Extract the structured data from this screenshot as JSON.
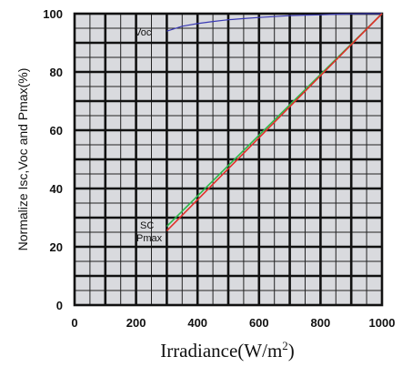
{
  "chart_data": {
    "type": "line",
    "xlabel": "Irradiance(W/m",
    "xlabel_sup": "2",
    "xlabel_close": ")",
    "ylabel": "Normalize Isc,Voc and Pmax(%)",
    "xlim": [
      0,
      1000
    ],
    "ylim": [
      0,
      100
    ],
    "x_ticks": [
      "0",
      "200",
      "400",
      "600",
      "800",
      "1000"
    ],
    "y_ticks": [
      "0",
      "20",
      "40",
      "60",
      "80",
      "100"
    ],
    "grid": true,
    "series": [
      {
        "name": "Voc",
        "color": "#3a3ab4",
        "x": [
          300,
          350,
          400,
          450,
          500,
          550,
          600,
          650,
          700,
          750,
          800,
          850,
          900,
          950,
          1000
        ],
        "y": [
          94,
          95.7,
          96.6,
          97.3,
          97.9,
          98.3,
          98.7,
          99.0,
          99.3,
          99.5,
          99.6,
          99.8,
          99.9,
          100,
          100
        ]
      },
      {
        "name": "SC",
        "color": "#2db84a",
        "x": [
          300,
          1000
        ],
        "y": [
          27,
          100
        ]
      },
      {
        "name": "Pmax",
        "color": "#e0302a",
        "x": [
          300,
          1000
        ],
        "y": [
          25.5,
          100
        ]
      }
    ],
    "annotations": [
      "Voc",
      "SC",
      "Pmax"
    ]
  }
}
